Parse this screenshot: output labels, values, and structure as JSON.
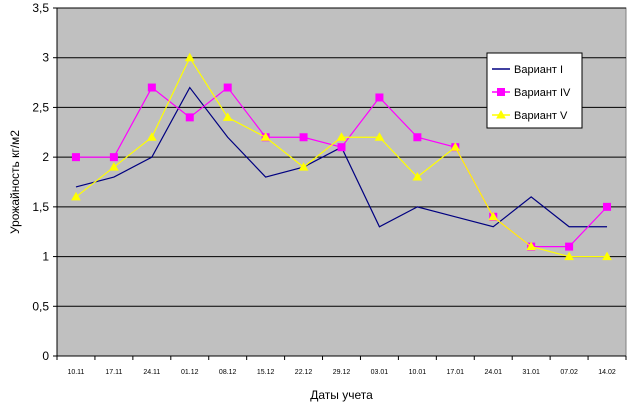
{
  "chart_data": {
    "type": "line",
    "title": "",
    "xlabel": "Даты учета",
    "ylabel": "Урожайность кг/м2",
    "categories": [
      "10.11",
      "17.11",
      "24.11",
      "01.12",
      "08.12",
      "15.12",
      "22.12",
      "29.12",
      "03.01",
      "10.01",
      "17.01",
      "24.01",
      "31.01",
      "07.02",
      "14.02"
    ],
    "ylim": [
      0,
      3.5
    ],
    "yticks": [
      "0",
      "0,5",
      "1",
      "1,5",
      "2",
      "2,5",
      "3",
      "3,5"
    ],
    "ytick_values": [
      0,
      0.5,
      1,
      1.5,
      2,
      2.5,
      3,
      3.5
    ],
    "grid": "horizontal",
    "legend_position": "top-right",
    "plot_background": "#c0c0c0",
    "series": [
      {
        "name": "Вариант I",
        "color": "#000080",
        "marker": "none",
        "values": [
          1.7,
          1.8,
          2.0,
          2.7,
          2.2,
          1.8,
          1.9,
          2.1,
          1.3,
          1.5,
          1.4,
          1.3,
          1.6,
          1.3,
          1.3
        ]
      },
      {
        "name": "Вариант IV",
        "color": "#ff00ff",
        "marker": "square",
        "values": [
          2.0,
          2.0,
          2.7,
          2.4,
          2.7,
          2.2,
          2.2,
          2.1,
          2.6,
          2.2,
          2.1,
          1.4,
          1.1,
          1.1,
          1.5
        ]
      },
      {
        "name": "Вариант V",
        "color": "#ffff00",
        "marker": "triangle",
        "values": [
          1.6,
          1.9,
          2.2,
          3.0,
          2.4,
          2.2,
          1.9,
          2.2,
          2.2,
          1.8,
          2.1,
          1.4,
          1.1,
          1.0,
          1.0
        ]
      }
    ]
  }
}
